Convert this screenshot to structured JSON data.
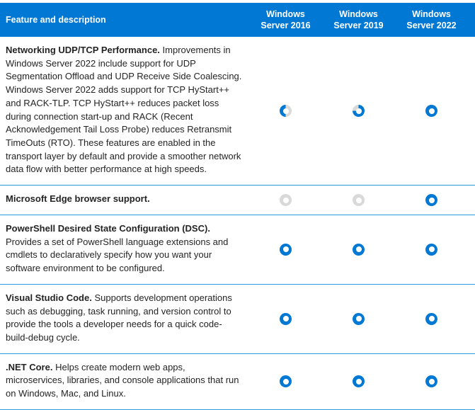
{
  "colors": {
    "header_bg": "#0078d4",
    "header_text": "#ffffff",
    "ring_blue": "#0078d4",
    "ring_gray": "#d9d9d9",
    "divider": "#2a9ae0",
    "body_text": "#242424"
  },
  "icons": {
    "full": "blue-ring-icon (supported)",
    "partial50": "half-blue-ring-icon (partially supported)",
    "partial75": "mostly-blue-ring-icon (partially supported)",
    "none": "gray-ring-icon (not supported)"
  },
  "header": {
    "feature_col": "Feature and description",
    "columns": [
      "Windows Server 2016",
      "Windows Server 2019",
      "Windows Server 2022"
    ]
  },
  "rows": [
    {
      "title": "Networking UDP/TCP Performance.",
      "desc": "Improvements in Windows Server 2022 include support for UDP Segmentation Offload and UDP Receive Side Coalescing. Windows Server 2022 adds support for TCP HyStart++ and RACK-TLP. TCP HyStart++ reduces packet loss during connection start-up and RACK (Recent Acknowledgement Tail Loss Probe) reduces Retransmit TimeOuts (RTO). These features are enabled in the transport layer by default and provide a smoother network data flow with better performance at high speeds.",
      "support": [
        "partial50",
        "partial75",
        "full"
      ]
    },
    {
      "title": "Microsoft Edge browser support.",
      "desc": "",
      "support": [
        "none",
        "none",
        "full"
      ]
    },
    {
      "title": "PowerShell Desired State Configuration (DSC).",
      "desc": "Provides a set of PowerShell language extensions and cmdlets to declaratively specify how you want your software environment to be configured.",
      "support": [
        "full",
        "full",
        "full"
      ]
    },
    {
      "title": "Visual Studio Code.",
      "desc": "Supports development operations such as debugging, task running, and version control to provide the tools a developer needs for a quick code-build-debug cycle.",
      "support": [
        "full",
        "full",
        "full"
      ]
    },
    {
      "title": ".NET Core.",
      "desc": "Helps create modern web apps, microservices, libraries, and console applications that run on Windows, Mac, and Linux.",
      "support": [
        "full",
        "full",
        "full"
      ]
    }
  ]
}
